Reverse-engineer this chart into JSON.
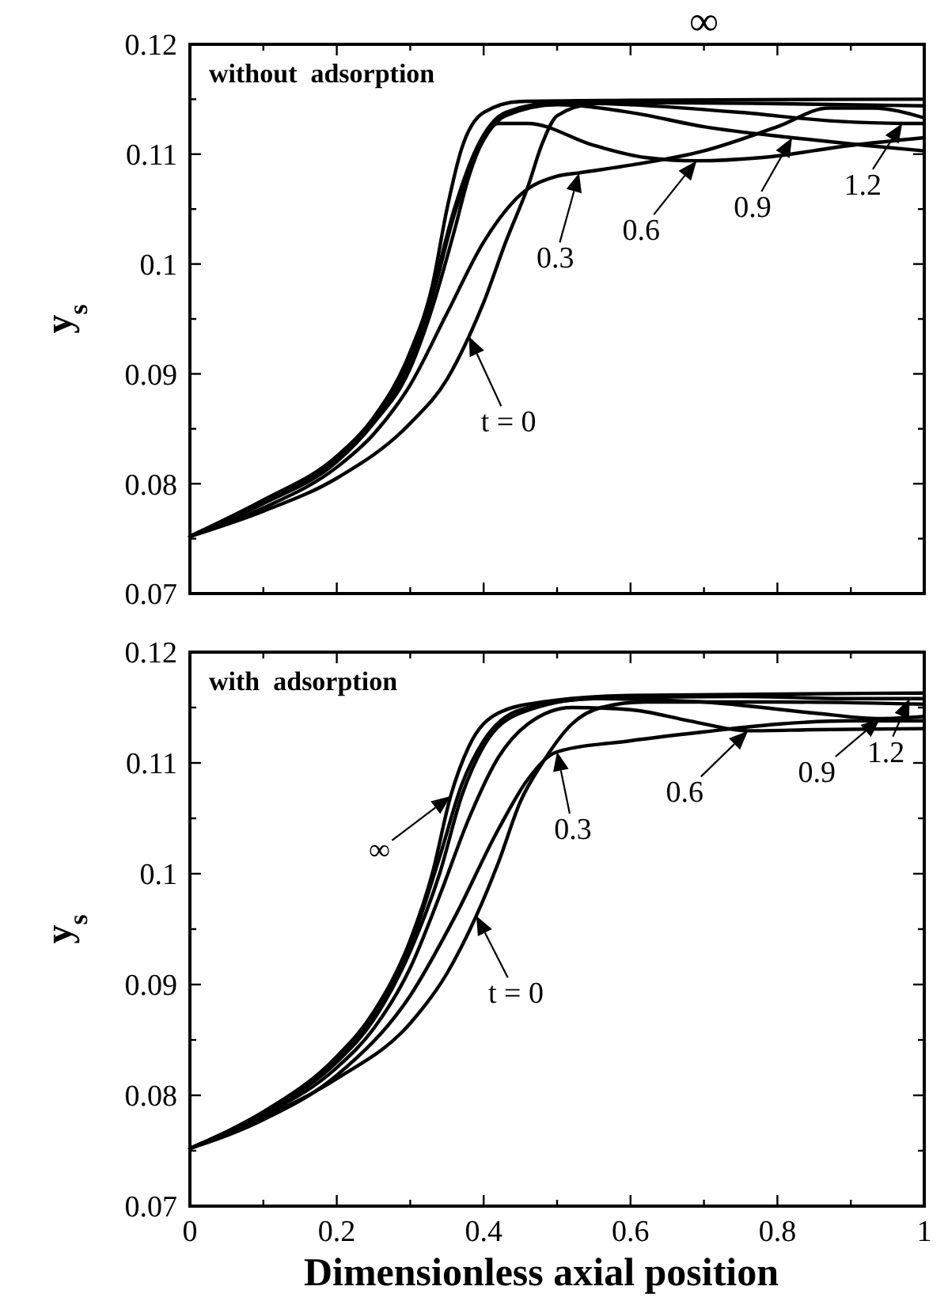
{
  "chart_data": [
    {
      "type": "line",
      "ylabel": "y$_{s}$",
      "xlim": [
        0,
        1
      ],
      "ylim": [
        0.07,
        0.12
      ],
      "xticks": [
        {
          "value": 0,
          "label": null
        },
        {
          "value": 0.1,
          "label": null
        },
        {
          "value": 0.2,
          "label": null
        },
        {
          "value": 0.3,
          "label": null
        },
        {
          "value": 0.4,
          "label": null
        },
        {
          "value": 0.5,
          "label": null
        },
        {
          "value": 0.6,
          "label": null
        },
        {
          "value": 0.7,
          "label": null
        },
        {
          "value": 0.8,
          "label": null
        },
        {
          "value": 0.9,
          "label": null
        },
        {
          "value": 1,
          "label": null
        }
      ],
      "yticks": [
        0.07,
        {
          "value": 0.075,
          "label": null
        },
        0.08,
        {
          "value": 0.085,
          "label": null
        },
        0.09,
        {
          "value": 0.095,
          "label": null
        },
        0.1,
        {
          "value": 0.105,
          "label": null
        },
        0.11,
        {
          "value": 0.115,
          "label": null
        },
        0.12
      ],
      "tick_labels": "y",
      "grid": false,
      "marker": "none",
      "line_style": "solid",
      "annotations": [
        "without  adsorption",
        {
          "text": "∞",
          "x": 0.7,
          "y": 0.1148
        },
        {
          "text": "t = 0",
          "x": 0.38,
          "y": 0.0934
        },
        {
          "text": "0.3",
          "x": 0.53,
          "y": 0.1083
        },
        {
          "text": "0.6",
          "x": 0.69,
          "y": 0.1094
        },
        {
          "text": "0.9",
          "x": 0.82,
          "y": 0.1115
        },
        {
          "text": "1.2",
          "x": 0.97,
          "y": 0.1128
        }
      ],
      "series": [
        {
          "color": "#000000",
          "x": [
            0,
            0.1,
            0.2,
            0.3,
            0.35,
            0.38,
            0.4,
            0.43,
            0.46,
            0.48,
            0.5,
            0.55,
            0.6,
            0.8,
            1
          ],
          "values": [
            0.0752,
            0.0775,
            0.0805,
            0.0855,
            0.0895,
            0.0934,
            0.0965,
            0.102,
            0.107,
            0.111,
            0.1135,
            0.1146,
            0.1147,
            0.1146,
            0.1144
          ]
        },
        {
          "color": "#000000",
          "x": [
            0,
            0.1,
            0.2,
            0.25,
            0.3,
            0.35,
            0.4,
            0.45,
            0.5,
            0.53,
            0.6,
            0.7,
            0.8,
            0.87,
            0.93,
            1
          ],
          "values": [
            0.0752,
            0.0778,
            0.0815,
            0.0845,
            0.089,
            0.0955,
            0.102,
            0.1063,
            0.108,
            0.1083,
            0.109,
            0.1103,
            0.1125,
            0.1142,
            0.1142,
            0.1133
          ]
        },
        {
          "color": "#000000",
          "x": [
            0,
            0.1,
            0.2,
            0.25,
            0.3,
            0.33,
            0.36,
            0.38,
            0.42,
            0.46,
            0.55,
            0.62,
            0.69,
            0.78,
            0.9,
            1
          ],
          "values": [
            0.0752,
            0.0782,
            0.082,
            0.0855,
            0.0905,
            0.096,
            0.103,
            0.108,
            0.1128,
            0.1128,
            0.1108,
            0.1097,
            0.1094,
            0.1097,
            0.1108,
            0.1115
          ]
        },
        {
          "color": "#000000",
          "x": [
            0,
            0.1,
            0.2,
            0.25,
            0.3,
            0.33,
            0.36,
            0.39,
            0.43,
            0.5,
            0.6,
            0.7,
            0.82,
            0.92,
            1
          ],
          "values": [
            0.0752,
            0.0784,
            0.0822,
            0.0858,
            0.0912,
            0.097,
            0.1045,
            0.11,
            0.1135,
            0.1145,
            0.1138,
            0.1125,
            0.1115,
            0.1108,
            0.1103
          ]
        },
        {
          "color": "#000000",
          "x": [
            0,
            0.1,
            0.2,
            0.25,
            0.3,
            0.33,
            0.36,
            0.39,
            0.43,
            0.5,
            0.6,
            0.75,
            0.88,
            0.97,
            1
          ],
          "values": [
            0.0752,
            0.0785,
            0.0824,
            0.086,
            0.0916,
            0.0975,
            0.105,
            0.1105,
            0.1138,
            0.1147,
            0.1145,
            0.1138,
            0.113,
            0.1128,
            0.1128
          ]
        },
        {
          "color": "#000000",
          "x": [
            0,
            0.1,
            0.2,
            0.25,
            0.3,
            0.33,
            0.35,
            0.37,
            0.4,
            0.45,
            0.6,
            1
          ],
          "values": [
            0.0752,
            0.0785,
            0.0825,
            0.086,
            0.092,
            0.098,
            0.105,
            0.1105,
            0.1138,
            0.1148,
            0.1149,
            0.115
          ]
        }
      ]
    },
    {
      "type": "line",
      "xlabel": "Dimensionless axial position",
      "ylabel": "y$_{s}$",
      "xlim": [
        0,
        1
      ],
      "ylim": [
        0.07,
        0.12
      ],
      "xticks": [
        0,
        {
          "value": 0.1,
          "label": null
        },
        0.2,
        {
          "value": 0.3,
          "label": null
        },
        0.4,
        {
          "value": 0.5,
          "label": null
        },
        0.6,
        {
          "value": 0.7,
          "label": null
        },
        0.8,
        {
          "value": 0.9,
          "label": null
        },
        1
      ],
      "yticks": [
        0.07,
        {
          "value": 0.075,
          "label": null
        },
        0.08,
        {
          "value": 0.085,
          "label": null
        },
        0.09,
        {
          "value": 0.095,
          "label": null
        },
        0.1,
        {
          "value": 0.105,
          "label": null
        },
        0.11,
        {
          "value": 0.115,
          "label": null
        },
        0.12
      ],
      "grid": false,
      "marker": "none",
      "line_style": "solid",
      "annotations": [
        "with  adsorption",
        {
          "text": "∞",
          "x": 0.355,
          "y": 0.107
        },
        {
          "text": "t = 0",
          "x": 0.39,
          "y": 0.0962
        },
        {
          "text": "0.3",
          "x": 0.5,
          "y": 0.111
        },
        {
          "text": "0.6",
          "x": 0.76,
          "y": 0.1129
        },
        {
          "text": "0.9",
          "x": 0.94,
          "y": 0.114
        },
        {
          "text": "1.2",
          "x": 0.98,
          "y": 0.1158
        }
      ],
      "series": [
        {
          "color": "#000000",
          "x": [
            0,
            0.1,
            0.2,
            0.3,
            0.35,
            0.39,
            0.42,
            0.45,
            0.48,
            0.52,
            0.56,
            0.62,
            0.8,
            1
          ],
          "values": [
            0.0752,
            0.078,
            0.0815,
            0.0865,
            0.091,
            0.0962,
            0.101,
            0.1065,
            0.11,
            0.1135,
            0.115,
            0.1155,
            0.1155,
            0.1153
          ]
        },
        {
          "color": "#000000",
          "x": [
            0,
            0.1,
            0.2,
            0.3,
            0.36,
            0.42,
            0.46,
            0.5,
            0.6,
            0.7,
            0.8,
            0.9,
            1
          ],
          "values": [
            0.0752,
            0.0778,
            0.0818,
            0.089,
            0.096,
            0.104,
            0.1085,
            0.111,
            0.112,
            0.1128,
            0.1135,
            0.1138,
            0.1138
          ]
        },
        {
          "color": "#000000",
          "x": [
            0,
            0.1,
            0.2,
            0.25,
            0.3,
            0.34,
            0.38,
            0.42,
            0.46,
            0.52,
            0.6,
            0.68,
            0.76,
            0.85,
            1
          ],
          "values": [
            0.0752,
            0.0782,
            0.0825,
            0.086,
            0.0915,
            0.098,
            0.105,
            0.1105,
            0.1135,
            0.115,
            0.1148,
            0.1138,
            0.1129,
            0.113,
            0.1131
          ]
        },
        {
          "color": "#000000",
          "x": [
            0,
            0.1,
            0.2,
            0.25,
            0.3,
            0.34,
            0.37,
            0.4,
            0.45,
            0.55,
            0.7,
            0.85,
            0.94,
            1
          ],
          "values": [
            0.0752,
            0.0784,
            0.083,
            0.0868,
            0.093,
            0.1,
            0.107,
            0.1115,
            0.1145,
            0.1158,
            0.1155,
            0.1145,
            0.114,
            0.1142
          ]
        },
        {
          "color": "#000000",
          "x": [
            0,
            0.1,
            0.2,
            0.25,
            0.3,
            0.34,
            0.37,
            0.4,
            0.45,
            0.55,
            0.75,
            0.9,
            0.98,
            1
          ],
          "values": [
            0.0752,
            0.0785,
            0.0832,
            0.087,
            0.0935,
            0.1015,
            0.108,
            0.112,
            0.1148,
            0.1158,
            0.116,
            0.1158,
            0.1158,
            0.1158
          ]
        },
        {
          "color": "#000000",
          "x": [
            0,
            0.1,
            0.2,
            0.25,
            0.3,
            0.33,
            0.355,
            0.38,
            0.42,
            0.48,
            0.6,
            1
          ],
          "values": [
            0.0752,
            0.0785,
            0.0835,
            0.0875,
            0.094,
            0.1,
            0.107,
            0.1115,
            0.1145,
            0.1155,
            0.1161,
            0.1163
          ]
        }
      ]
    }
  ]
}
